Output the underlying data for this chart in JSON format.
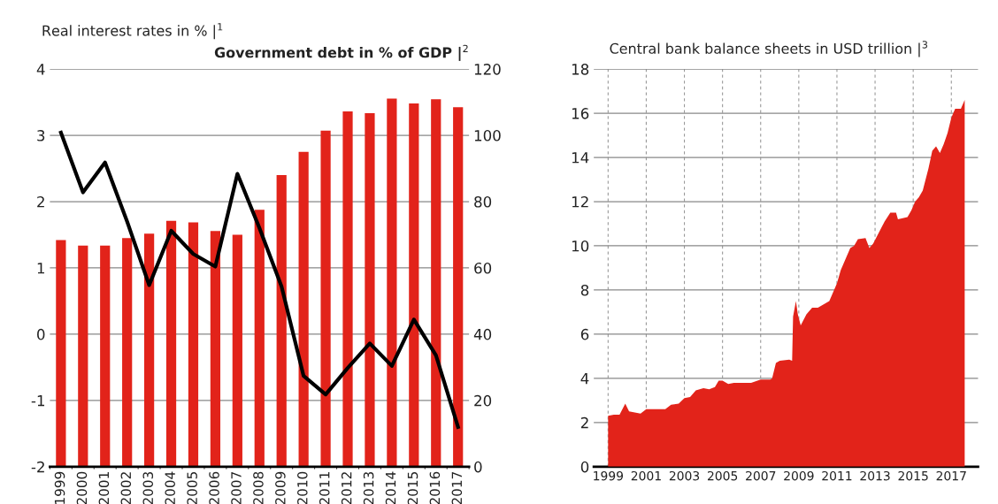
{
  "chart_data": [
    {
      "type": "bar",
      "ylabel": "Real interest rates in % |$^{1}$",
      "y2label": "Government debt in % of GDP |$^{2}$",
      "categories": [
        "1999",
        "2000",
        "2001",
        "2002",
        "2003",
        "2004",
        "2005",
        "2006",
        "2007",
        "2008",
        "2009",
        "2010",
        "2011",
        "2012",
        "2013",
        "2014",
        "2015",
        "2016",
        "2017"
      ],
      "series": [
        {
          "type": "bar",
          "axis": "y2",
          "color": "#e2231a",
          "values": [
            68.4,
            66.7,
            66.7,
            69.0,
            70.3,
            74.2,
            73.7,
            71.1,
            70.0,
            77.5,
            88.0,
            95.0,
            101.4,
            107.2,
            106.7,
            111.1,
            109.6,
            110.9,
            108.5
          ]
        },
        {
          "type": "line",
          "color": "#000000",
          "values": [
            3.04,
            2.14,
            2.59,
            1.7,
            0.74,
            1.56,
            1.21,
            1.02,
            2.42,
            1.6,
            0.72,
            -0.63,
            -0.91,
            -0.51,
            -0.14,
            -0.48,
            0.22,
            -0.32,
            -1.4
          ]
        }
      ],
      "ylim": [
        -2,
        4
      ],
      "yticks": [
        -2,
        -1,
        0,
        1,
        2,
        3,
        4
      ],
      "y2lim": [
        0,
        120
      ],
      "y2ticks": [
        0,
        20,
        40,
        60,
        80,
        100,
        120
      ],
      "grid": true,
      "line_style": "solid",
      "marker": "none"
    },
    {
      "type": "area",
      "ylabel": "Central bank balance sheets in USD trillion |$^{3}$",
      "x": [
        1999.0,
        1999.3,
        1999.6,
        1999.9,
        2000.1,
        2000.4,
        2000.7,
        2001.0,
        2001.5,
        2002.0,
        2002.3,
        2002.7,
        2003.0,
        2003.3,
        2003.6,
        2004.0,
        2004.3,
        2004.6,
        2004.8,
        2005.0,
        2005.3,
        2005.6,
        2006.0,
        2006.5,
        2007.0,
        2007.5,
        2007.6,
        2007.8,
        2008.0,
        2008.5,
        2008.65,
        2008.7,
        2008.85,
        2008.95,
        2009.1,
        2009.4,
        2009.7,
        2010.0,
        2010.4,
        2010.6,
        2010.8,
        2011.0,
        2011.2,
        2011.5,
        2011.7,
        2011.9,
        2012.1,
        2012.5,
        2012.7,
        2012.9,
        2013.2,
        2013.5,
        2013.8,
        2014.1,
        2014.2,
        2014.7,
        2014.9,
        2015.1,
        2015.3,
        2015.5,
        2015.8,
        2016.0,
        2016.2,
        2016.4,
        2016.6,
        2016.8,
        2017.0,
        2017.2,
        2017.5,
        2017.7
      ],
      "series": [
        {
          "color": "#e2231a",
          "values": [
            2.3,
            2.35,
            2.35,
            2.85,
            2.5,
            2.45,
            2.4,
            2.6,
            2.6,
            2.6,
            2.8,
            2.85,
            3.1,
            3.15,
            3.45,
            3.55,
            3.5,
            3.6,
            3.9,
            3.9,
            3.75,
            3.8,
            3.8,
            3.8,
            3.95,
            3.95,
            4.0,
            4.7,
            4.8,
            4.85,
            4.8,
            6.8,
            7.5,
            6.9,
            6.4,
            6.9,
            7.2,
            7.2,
            7.4,
            7.5,
            7.9,
            8.3,
            8.9,
            9.5,
            9.9,
            10.0,
            10.3,
            10.35,
            9.9,
            10.1,
            10.6,
            11.1,
            11.5,
            11.5,
            11.2,
            11.3,
            11.6,
            12.0,
            12.2,
            12.5,
            13.5,
            14.3,
            14.5,
            14.2,
            14.6,
            15.1,
            15.8,
            16.2,
            16.2,
            16.6
          ]
        }
      ],
      "xlim": [
        1998.25,
        2018.4
      ],
      "xticks": [
        1999,
        2001,
        2003,
        2005,
        2007,
        2009,
        2011,
        2013,
        2015,
        2017
      ],
      "ylim": [
        0,
        18
      ],
      "yticks": [
        0,
        2,
        4,
        6,
        8,
        10,
        12,
        14,
        16,
        18
      ],
      "grid": true
    }
  ]
}
